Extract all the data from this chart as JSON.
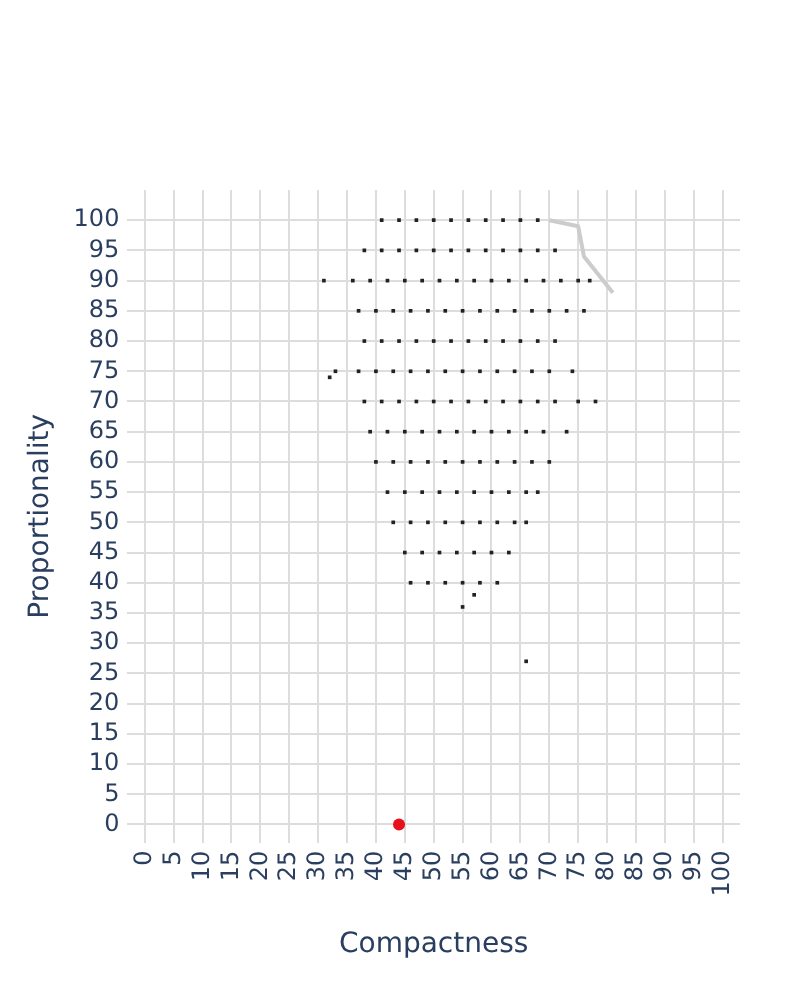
{
  "chart_data": {
    "type": "scatter",
    "xlabel": "Compactness",
    "ylabel": "Proportionality",
    "xlim": [
      -3,
      103
    ],
    "ylim": [
      -3,
      105
    ],
    "xticks": [
      0,
      5,
      10,
      15,
      20,
      25,
      30,
      35,
      40,
      45,
      50,
      55,
      60,
      65,
      70,
      75,
      80,
      85,
      90,
      95,
      100
    ],
    "yticks": [
      0,
      5,
      10,
      15,
      20,
      25,
      30,
      35,
      40,
      45,
      50,
      55,
      60,
      65,
      70,
      75,
      80,
      85,
      90,
      95,
      100
    ],
    "grid": true,
    "legend": false,
    "series": [
      {
        "type": "scatter",
        "marker": "square",
        "color": "#222222",
        "x": [
          41,
          44,
          47,
          50,
          53,
          56,
          59,
          62,
          65,
          68,
          38,
          41,
          44,
          47,
          50,
          53,
          56,
          59,
          62,
          65,
          68,
          71,
          36,
          39,
          42,
          45,
          48,
          51,
          54,
          57,
          60,
          63,
          66,
          69,
          72,
          75,
          77,
          37,
          40,
          43,
          46,
          49,
          52,
          55,
          58,
          61,
          64,
          67,
          70,
          73,
          76,
          38,
          41,
          44,
          47,
          50,
          53,
          56,
          59,
          62,
          65,
          68,
          71,
          33,
          37,
          40,
          43,
          46,
          49,
          52,
          55,
          58,
          61,
          64,
          67,
          70,
          74,
          38,
          41,
          44,
          47,
          50,
          53,
          56,
          59,
          62,
          65,
          68,
          71,
          75,
          78,
          39,
          42,
          45,
          48,
          51,
          54,
          57,
          60,
          63,
          66,
          69,
          73,
          40,
          43,
          46,
          49,
          52,
          55,
          58,
          61,
          64,
          67,
          70,
          42,
          45,
          48,
          51,
          54,
          57,
          60,
          63,
          66,
          68,
          43,
          46,
          49,
          52,
          55,
          58,
          61,
          64,
          66,
          45,
          48,
          51,
          54,
          57,
          60,
          63,
          46,
          49,
          52,
          55,
          58,
          61,
          31,
          32,
          55,
          57,
          66
        ],
        "values": [
          100,
          100,
          100,
          100,
          100,
          100,
          100,
          100,
          100,
          100,
          95,
          95,
          95,
          95,
          95,
          95,
          95,
          95,
          95,
          95,
          95,
          95,
          90,
          90,
          90,
          90,
          90,
          90,
          90,
          90,
          90,
          90,
          90,
          90,
          90,
          90,
          90,
          85,
          85,
          85,
          85,
          85,
          85,
          85,
          85,
          85,
          85,
          85,
          85,
          85,
          85,
          80,
          80,
          80,
          80,
          80,
          80,
          80,
          80,
          80,
          80,
          80,
          80,
          75,
          75,
          75,
          75,
          75,
          75,
          75,
          75,
          75,
          75,
          75,
          75,
          75,
          75,
          70,
          70,
          70,
          70,
          70,
          70,
          70,
          70,
          70,
          70,
          70,
          70,
          70,
          70,
          65,
          65,
          65,
          65,
          65,
          65,
          65,
          65,
          65,
          65,
          65,
          65,
          60,
          60,
          60,
          60,
          60,
          60,
          60,
          60,
          60,
          60,
          60,
          55,
          55,
          55,
          55,
          55,
          55,
          55,
          55,
          55,
          55,
          50,
          50,
          50,
          50,
          50,
          50,
          50,
          50,
          50,
          45,
          45,
          45,
          45,
          45,
          45,
          45,
          40,
          40,
          40,
          40,
          40,
          40,
          90,
          74,
          36,
          38,
          27
        ]
      },
      {
        "type": "line",
        "marker": "none",
        "color": "#cccccc",
        "x": [
          70,
          75,
          76,
          81
        ],
        "values": [
          100,
          99,
          94,
          88
        ]
      },
      {
        "type": "scatter",
        "marker": "circle",
        "color": "#e8101a",
        "x": [
          44
        ],
        "values": [
          0
        ]
      }
    ]
  }
}
